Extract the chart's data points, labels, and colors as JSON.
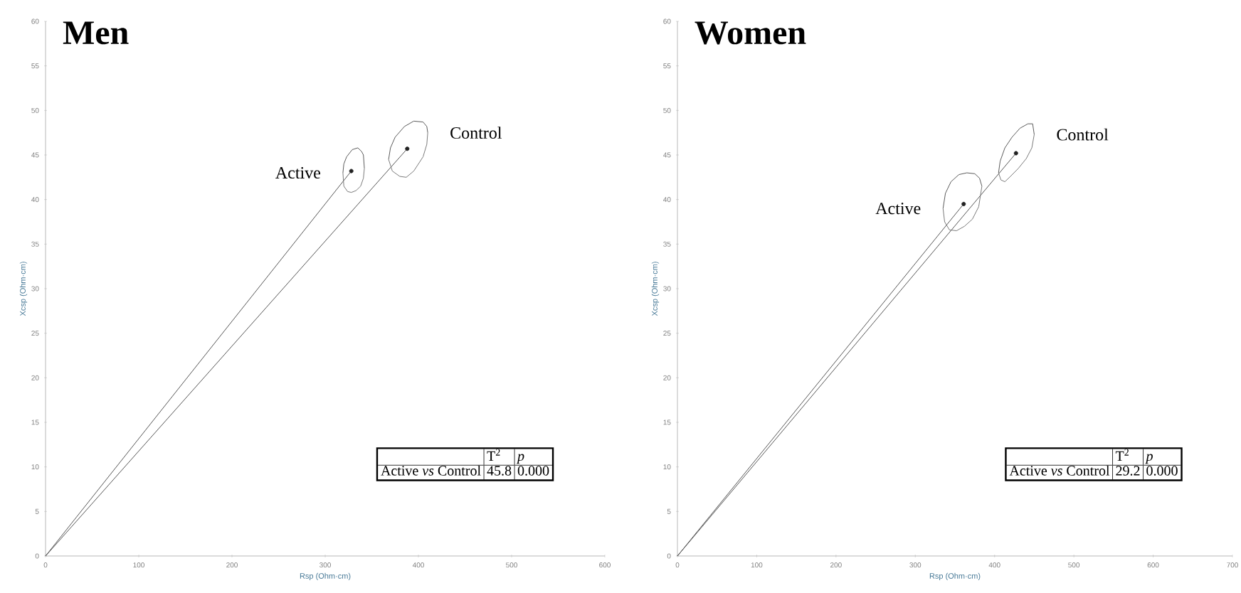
{
  "chart_data": [
    {
      "type": "line",
      "title": "Men",
      "xlabel": "Rsp (Ohm·cm)",
      "ylabel": "Xcsp (Ohm·cm)",
      "xlim": [
        0,
        600
      ],
      "ylim": [
        0,
        60
      ],
      "xticks": [
        0,
        100,
        200,
        300,
        400,
        500,
        600
      ],
      "yticks": [
        0,
        5,
        10,
        15,
        20,
        25,
        30,
        35,
        40,
        45,
        50,
        55,
        60
      ],
      "marker": "none",
      "line_style": "solid",
      "series": [
        {
          "color": "#555555",
          "x": [
            0,
            328
          ],
          "values": [
            0,
            43.2
          ]
        },
        {
          "color": "#555555",
          "x": [
            0,
            388
          ],
          "values": [
            0,
            45.7
          ]
        },
        {
          "name": "Active",
          "color": "#5a5a5a",
          "x": [
            319,
            320,
            323,
            329,
            335,
            339,
            341,
            342
          ],
          "values": [
            43,
            44,
            44.8,
            45.6,
            45.8,
            45.4,
            45,
            43.5
          ]
        },
        {
          "color": "#7a7a7a",
          "x": [
            319,
            320,
            324,
            328,
            333,
            338,
            341,
            342
          ],
          "values": [
            43,
            41.5,
            40.9,
            40.8,
            41,
            41.5,
            42.4,
            43.5
          ]
        },
        {
          "name": "Control",
          "color": "#5a5a5a",
          "x": [
            368,
            370,
            375,
            385,
            395,
            405,
            409,
            410
          ],
          "values": [
            44.5,
            45.8,
            47,
            48.2,
            48.8,
            48.7,
            48.2,
            47.5
          ]
        },
        {
          "color": "#7a7a7a",
          "x": [
            368,
            372,
            380,
            387,
            395,
            405,
            409,
            410
          ],
          "values": [
            44.5,
            43.2,
            42.6,
            42.5,
            43.2,
            44.8,
            46.2,
            47.5
          ]
        },
        {
          "type": "scatter",
          "color": "#222222",
          "x": [
            328,
            388
          ],
          "values": [
            43.2,
            45.7
          ]
        }
      ],
      "annotations": [
        "T$^{2}$",
        "p",
        "Active *vs* Control",
        "45.8",
        "0.000"
      ]
    },
    {
      "type": "line",
      "title": "Women",
      "xlabel": "Rsp (Ohm·cm)",
      "ylabel": "Xcsp (Ohm·cm)",
      "xlim": [
        0,
        700
      ],
      "ylim": [
        0,
        60
      ],
      "xticks": [
        0,
        100,
        200,
        300,
        400,
        500,
        600,
        700
      ],
      "yticks": [
        0,
        5,
        10,
        15,
        20,
        25,
        30,
        35,
        40,
        45,
        50,
        55,
        60
      ],
      "marker": "none",
      "line_style": "solid",
      "series": [
        {
          "color": "#555555",
          "x": [
            0,
            361
          ],
          "values": [
            0,
            39.5
          ]
        },
        {
          "color": "#555555",
          "x": [
            0,
            427
          ],
          "values": [
            0,
            45.2
          ]
        },
        {
          "name": "Active",
          "color": "#5a5a5a",
          "x": [
            335,
            338,
            345,
            355,
            365,
            375,
            381,
            384
          ],
          "values": [
            39,
            40.7,
            42,
            42.8,
            43,
            42.9,
            42.4,
            41.5
          ]
        },
        {
          "color": "#7a7a7a",
          "x": [
            335,
            337,
            343,
            352,
            362,
            372,
            380,
            384
          ],
          "values": [
            39,
            37.5,
            36.6,
            36.5,
            37,
            37.8,
            39.2,
            41.5
          ]
        },
        {
          "name": "Control",
          "color": "#5a5a5a",
          "x": [
            405,
            407,
            413,
            422,
            432,
            442,
            448,
            450
          ],
          "values": [
            43,
            44.3,
            45.8,
            47,
            48,
            48.5,
            48.5,
            47.3
          ]
        },
        {
          "color": "#7a7a7a",
          "x": [
            405,
            408,
            413,
            420,
            430,
            440,
            447,
            450
          ],
          "values": [
            43,
            42.2,
            42,
            42.6,
            43.5,
            44.6,
            45.8,
            47.3
          ]
        },
        {
          "type": "scatter",
          "color": "#222222",
          "x": [
            361,
            427
          ],
          "values": [
            39.5,
            45.2
          ]
        }
      ],
      "annotations": [
        "T$^{2}$",
        "p",
        "Active *vs* Control",
        "29.2",
        "0.000"
      ]
    }
  ]
}
